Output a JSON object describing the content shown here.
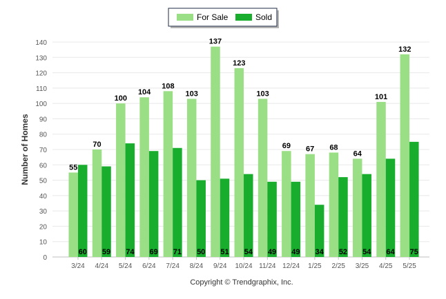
{
  "footer": {
    "copyright": "Copyright © Trendgraphix, Inc."
  },
  "colors": {
    "for_sale": "#9ADF85",
    "sold": "#18AD2D",
    "grid": "#E8E8E8",
    "axis": "#BFBFBF",
    "legend_border": "#1F2A44",
    "text": "#000000",
    "tick": "#555555"
  },
  "chart_data": {
    "type": "bar",
    "title": "",
    "xlabel": "",
    "ylabel": "Number of Homes",
    "ylim": [
      0,
      140
    ],
    "y_ticks": [
      0,
      10,
      20,
      30,
      40,
      50,
      60,
      70,
      80,
      90,
      100,
      110,
      120,
      130,
      140
    ],
    "grid": true,
    "legend_position": "top-center",
    "categories": [
      "3/24",
      "4/24",
      "5/24",
      "6/24",
      "7/24",
      "8/24",
      "9/24",
      "10/24",
      "11/24",
      "12/24",
      "1/25",
      "2/25",
      "3/25",
      "4/25",
      "5/25"
    ],
    "series": [
      {
        "name": "For Sale",
        "color": "#9ADF85",
        "label_position": "top",
        "values": [
          55,
          70,
          100,
          104,
          108,
          103,
          137,
          123,
          103,
          69,
          67,
          68,
          64,
          101,
          132
        ]
      },
      {
        "name": "Sold",
        "color": "#18AD2D",
        "label_position": "bottom",
        "values": [
          60,
          59,
          74,
          69,
          71,
          50,
          51,
          54,
          49,
          49,
          34,
          52,
          54,
          64,
          75
        ]
      }
    ]
  }
}
